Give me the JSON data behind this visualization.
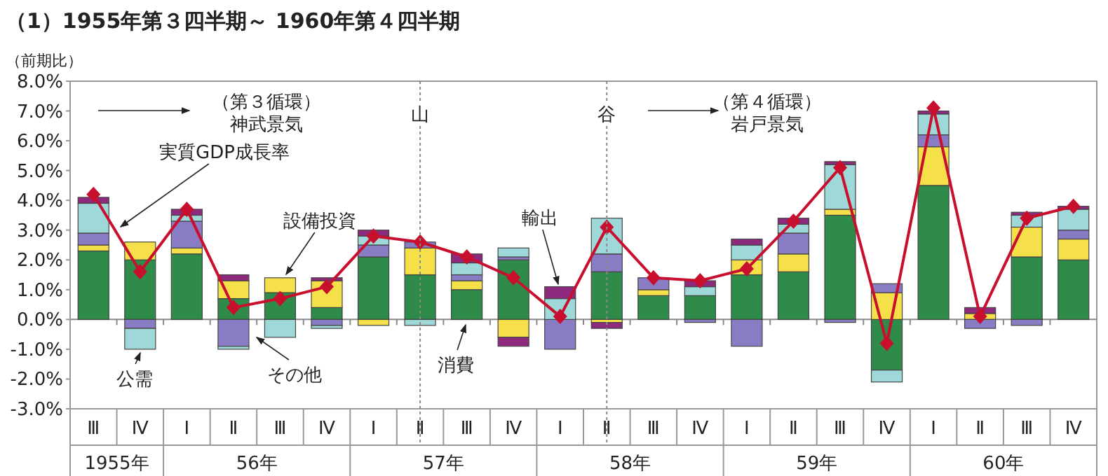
{
  "chart_data": {
    "type": "bar",
    "stacked": true,
    "title": "（1）1955年第３四半期～ 1960年第４四半期",
    "ylabel": "（前期比）",
    "categories": [
      "Ⅲ",
      "Ⅳ",
      "Ⅰ",
      "Ⅱ",
      "Ⅲ",
      "Ⅳ",
      "Ⅰ",
      "Ⅱ",
      "Ⅲ",
      "Ⅳ",
      "Ⅰ",
      "Ⅱ",
      "Ⅲ",
      "Ⅳ",
      "Ⅰ",
      "Ⅱ",
      "Ⅲ",
      "Ⅳ",
      "Ⅰ",
      "Ⅱ",
      "Ⅲ",
      "Ⅳ"
    ],
    "series": [
      {
        "name": "消費",
        "color": "#2e8b4a",
        "values": [
          2.3,
          2.0,
          2.2,
          0.7,
          0.9,
          0.4,
          2.1,
          1.5,
          1.0,
          2.0,
          null,
          1.6,
          0.8,
          0.8,
          1.5,
          1.6,
          3.5,
          -1.7,
          4.5,
          null,
          2.1,
          2.0
        ]
      },
      {
        "name": "設備投資",
        "color": "#f5e04a",
        "values": [
          0.2,
          0.6,
          0.2,
          0.6,
          0.5,
          0.9,
          -0.2,
          0.9,
          0.3,
          -0.6,
          null,
          -0.1,
          0.2,
          null,
          0.5,
          0.6,
          0.2,
          0.9,
          1.3,
          0.2,
          1.0,
          0.7
        ]
      },
      {
        "name": "その他",
        "color": "#8a7cc4",
        "values": [
          0.4,
          -0.3,
          0.9,
          -0.9,
          null,
          -0.2,
          0.4,
          0.2,
          0.2,
          0.1,
          -1.0,
          0.6,
          0.4,
          -0.1,
          -0.9,
          0.7,
          -0.1,
          0.3,
          0.4,
          -0.3,
          -0.2,
          0.3
        ]
      },
      {
        "name": "公需",
        "color": "#9fd8d8",
        "values": [
          1.0,
          -0.7,
          0.2,
          -0.1,
          -0.6,
          -0.1,
          0.3,
          -0.2,
          0.4,
          0.3,
          0.7,
          1.2,
          null,
          0.3,
          0.5,
          0.3,
          1.5,
          -0.4,
          0.7,
          null,
          0.4,
          0.7
        ]
      },
      {
        "name": "輸出",
        "color": "#8e2a7e",
        "values": [
          0.2,
          null,
          0.2,
          0.2,
          null,
          0.1,
          0.2,
          null,
          0.3,
          -0.3,
          0.4,
          -0.2,
          null,
          0.2,
          0.2,
          0.2,
          0.1,
          null,
          0.1,
          0.2,
          0.1,
          0.1
        ]
      },
      {
        "name": "実質GDP成長率",
        "type": "line",
        "color": "#c8102e",
        "marker": "diamond",
        "line_style": "solid",
        "values": [
          4.2,
          1.6,
          3.7,
          0.4,
          0.7,
          1.1,
          2.8,
          2.6,
          2.1,
          1.4,
          0.1,
          3.1,
          1.4,
          1.3,
          1.7,
          3.3,
          5.1,
          -0.8,
          7.1,
          0.1,
          3.4,
          3.8
        ]
      }
    ],
    "ylim": [
      -3,
      8
    ],
    "yticks": [
      {
        "value": -3,
        "label": "-3.0%"
      },
      {
        "value": -2,
        "label": "-2.0%"
      },
      {
        "value": -1,
        "label": "-1.0%"
      },
      {
        "value": 0,
        "label": "0.0%"
      },
      {
        "value": 1,
        "label": "1.0%"
      },
      {
        "value": 2,
        "label": "2.0%"
      },
      {
        "value": 3,
        "label": "3.0%"
      },
      {
        "value": 4,
        "label": "4.0%"
      },
      {
        "value": 5,
        "label": "5.0%"
      },
      {
        "value": 6,
        "label": "6.0%"
      },
      {
        "value": 7,
        "label": "7.0%"
      },
      {
        "value": 8,
        "label": "8.0%"
      }
    ],
    "annotations": [
      "（第３循環）",
      "神武景気",
      "（第４循環）",
      "岩戸景気",
      "山",
      "谷",
      "1955年",
      "56年",
      "57年",
      "58年",
      "59年",
      "60年"
    ],
    "legend": false
  }
}
